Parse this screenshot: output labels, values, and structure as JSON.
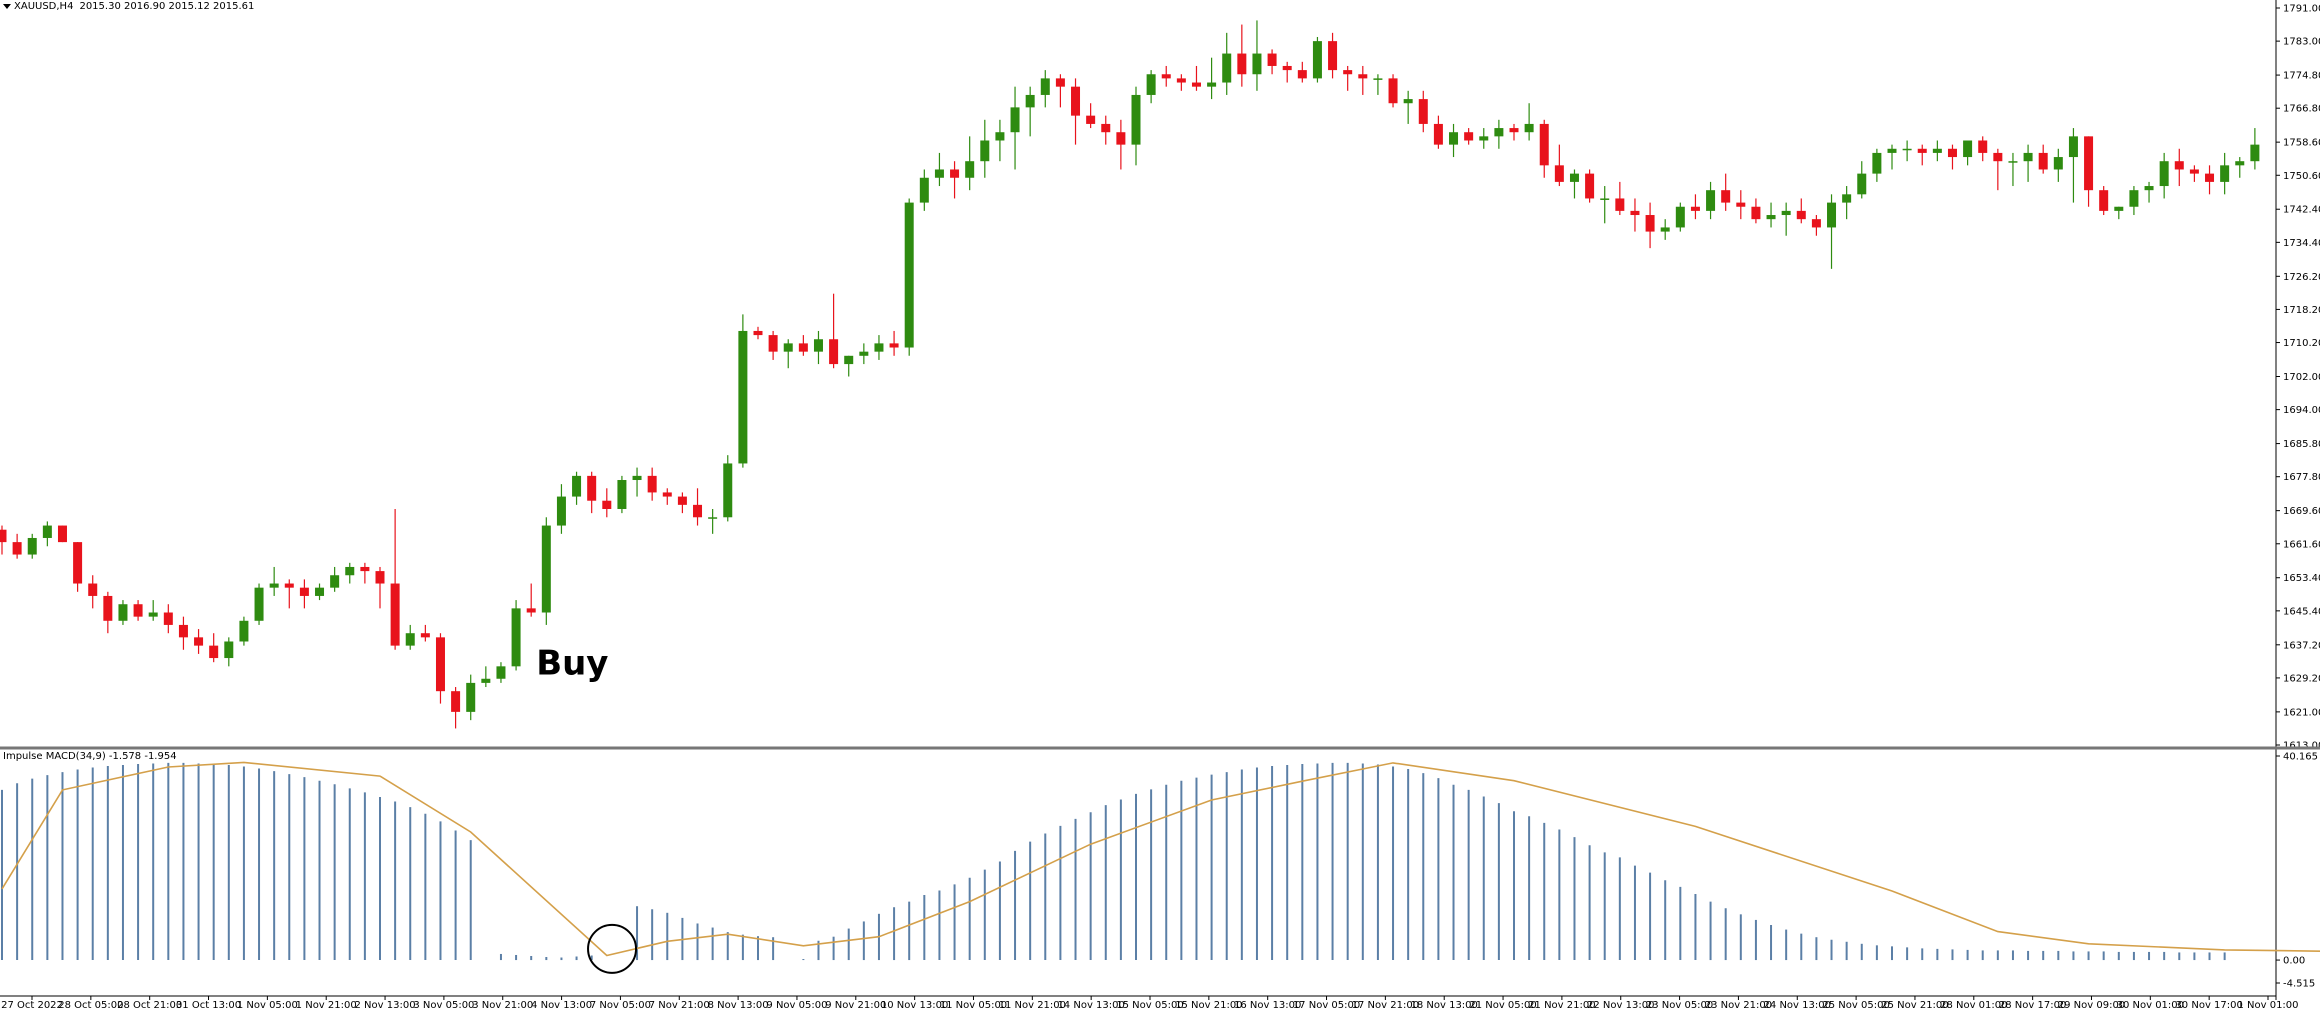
{
  "header": {
    "symbol": "XAUUSD,H4",
    "ohlc": "2015.30 2016.90 2015.12 2015.61"
  },
  "indicator": {
    "label": "Impulse MACD(34,9) -1.578 -1.954"
  },
  "annotation": {
    "buy_label": "Buy"
  },
  "colors": {
    "bull": "#2e8b10",
    "bear": "#e8131c",
    "hist": "#5b7fa6",
    "signal": "#d4a04a",
    "separator": "#777777"
  },
  "chart_data": [
    {
      "type": "candlestick",
      "title": "XAUUSD,H4",
      "ylim": [
        1613.0,
        1791.0
      ],
      "y_ticks": [
        "1791.00",
        "1783.00",
        "1774.80",
        "1766.80",
        "1758.60",
        "1750.60",
        "1742.40",
        "1734.40",
        "1726.20",
        "1718.20",
        "1710.20",
        "1702.00",
        "1694.00",
        "1685.80",
        "1677.80",
        "1669.60",
        "1661.60",
        "1653.40",
        "1645.40",
        "1637.20",
        "1629.20",
        "1621.00",
        "1613.00"
      ],
      "candles": [
        [
          1665,
          1666,
          1659,
          1662
        ],
        [
          1662,
          1664,
          1658,
          1659
        ],
        [
          1659,
          1664,
          1658,
          1663
        ],
        [
          1663,
          1667,
          1661,
          1666
        ],
        [
          1666,
          1666,
          1662,
          1662
        ],
        [
          1662,
          1662,
          1650,
          1652
        ],
        [
          1652,
          1654,
          1646,
          1649
        ],
        [
          1649,
          1650,
          1640,
          1643
        ],
        [
          1643,
          1648,
          1642,
          1647
        ],
        [
          1647,
          1648,
          1643,
          1644
        ],
        [
          1644,
          1648,
          1643,
          1645
        ],
        [
          1645,
          1647,
          1640,
          1642
        ],
        [
          1642,
          1644,
          1636,
          1639
        ],
        [
          1639,
          1641,
          1635,
          1637
        ],
        [
          1637,
          1640,
          1633,
          1634
        ],
        [
          1634,
          1639,
          1632,
          1638
        ],
        [
          1638,
          1644,
          1637,
          1643
        ],
        [
          1643,
          1652,
          1642,
          1651
        ],
        [
          1651,
          1656,
          1649,
          1652
        ],
        [
          1652,
          1653,
          1646,
          1651
        ],
        [
          1651,
          1653,
          1646,
          1649
        ],
        [
          1649,
          1652,
          1648,
          1651
        ],
        [
          1651,
          1656,
          1650,
          1654
        ],
        [
          1654,
          1657,
          1652,
          1656
        ],
        [
          1656,
          1657,
          1652,
          1655
        ],
        [
          1655,
          1656,
          1646,
          1652
        ],
        [
          1652,
          1670,
          1636,
          1637
        ],
        [
          1637,
          1642,
          1636,
          1640
        ],
        [
          1640,
          1642,
          1638,
          1639
        ],
        [
          1639,
          1640,
          1623,
          1626
        ],
        [
          1626,
          1627,
          1617,
          1621
        ],
        [
          1621,
          1630,
          1619,
          1628
        ],
        [
          1628,
          1632,
          1627,
          1629
        ],
        [
          1629,
          1633,
          1628,
          1632
        ],
        [
          1632,
          1648,
          1631,
          1646
        ],
        [
          1646,
          1652,
          1644,
          1645
        ],
        [
          1645,
          1668,
          1642,
          1666
        ],
        [
          1666,
          1676,
          1664,
          1673
        ],
        [
          1673,
          1679,
          1671,
          1678
        ],
        [
          1678,
          1679,
          1669,
          1672
        ],
        [
          1672,
          1675,
          1668,
          1670
        ],
        [
          1670,
          1678,
          1669,
          1677
        ],
        [
          1677,
          1680,
          1673,
          1678
        ],
        [
          1678,
          1680,
          1672,
          1674
        ],
        [
          1674,
          1675,
          1671,
          1673
        ],
        [
          1673,
          1674,
          1669,
          1671
        ],
        [
          1671,
          1675,
          1666,
          1668
        ],
        [
          1668,
          1670,
          1664,
          1668
        ],
        [
          1668,
          1683,
          1667,
          1681
        ],
        [
          1681,
          1717,
          1680,
          1713
        ],
        [
          1713,
          1714,
          1711,
          1712
        ],
        [
          1712,
          1713,
          1706,
          1708
        ],
        [
          1708,
          1711,
          1704,
          1710
        ],
        [
          1710,
          1712,
          1707,
          1708
        ],
        [
          1708,
          1713,
          1705,
          1711
        ],
        [
          1711,
          1722,
          1704,
          1705
        ],
        [
          1705,
          1707,
          1702,
          1707
        ],
        [
          1707,
          1710,
          1705,
          1708
        ],
        [
          1708,
          1712,
          1706,
          1710
        ],
        [
          1710,
          1713,
          1707,
          1709
        ],
        [
          1709,
          1745,
          1707,
          1744
        ],
        [
          1744,
          1752,
          1742,
          1750
        ],
        [
          1750,
          1756,
          1748,
          1752
        ],
        [
          1752,
          1754,
          1745,
          1750
        ],
        [
          1750,
          1760,
          1747,
          1754
        ],
        [
          1754,
          1764,
          1750,
          1759
        ],
        [
          1759,
          1764,
          1754,
          1761
        ],
        [
          1761,
          1772,
          1752,
          1767
        ],
        [
          1767,
          1772,
          1760,
          1770
        ],
        [
          1770,
          1776,
          1767,
          1774
        ],
        [
          1774,
          1775,
          1767,
          1772
        ],
        [
          1772,
          1774,
          1758,
          1765
        ],
        [
          1765,
          1768,
          1762,
          1763
        ],
        [
          1763,
          1765,
          1758,
          1761
        ],
        [
          1761,
          1764,
          1752,
          1758
        ],
        [
          1758,
          1772,
          1753,
          1770
        ],
        [
          1770,
          1776,
          1768,
          1775
        ],
        [
          1775,
          1777,
          1772,
          1774
        ],
        [
          1774,
          1775,
          1771,
          1773
        ],
        [
          1773,
          1777,
          1771,
          1772
        ],
        [
          1772,
          1779,
          1769,
          1773
        ],
        [
          1773,
          1785,
          1770,
          1780
        ],
        [
          1780,
          1787,
          1772,
          1775
        ],
        [
          1775,
          1788,
          1771,
          1780
        ],
        [
          1780,
          1781,
          1775,
          1777
        ],
        [
          1777,
          1778,
          1773,
          1776
        ],
        [
          1776,
          1778,
          1773,
          1774
        ],
        [
          1774,
          1784,
          1773,
          1783
        ],
        [
          1783,
          1785,
          1774,
          1776
        ],
        [
          1776,
          1777,
          1771,
          1775
        ],
        [
          1775,
          1777,
          1770,
          1774
        ],
        [
          1774,
          1775,
          1770,
          1774
        ],
        [
          1774,
          1775,
          1767,
          1768
        ],
        [
          1768,
          1771,
          1763,
          1769
        ],
        [
          1769,
          1771,
          1761,
          1763
        ],
        [
          1763,
          1765,
          1757,
          1758
        ],
        [
          1758,
          1763,
          1755,
          1761
        ],
        [
          1761,
          1762,
          1758,
          1759
        ],
        [
          1759,
          1762,
          1757,
          1760
        ],
        [
          1760,
          1764,
          1757,
          1762
        ],
        [
          1762,
          1763,
          1759,
          1761
        ],
        [
          1761,
          1768,
          1759,
          1763
        ],
        [
          1763,
          1764,
          1750,
          1753
        ],
        [
          1753,
          1758,
          1748,
          1749
        ],
        [
          1749,
          1752,
          1745,
          1751
        ],
        [
          1751,
          1752,
          1744,
          1745
        ],
        [
          1745,
          1748,
          1739,
          1745
        ],
        [
          1745,
          1749,
          1741,
          1742
        ],
        [
          1742,
          1745,
          1737,
          1741
        ],
        [
          1741,
          1744,
          1733,
          1737
        ],
        [
          1737,
          1740,
          1735,
          1738
        ],
        [
          1738,
          1744,
          1737,
          1743
        ],
        [
          1743,
          1746,
          1740,
          1742
        ],
        [
          1742,
          1749,
          1740,
          1747
        ],
        [
          1747,
          1751,
          1742,
          1744
        ],
        [
          1744,
          1747,
          1740,
          1743
        ],
        [
          1743,
          1745,
          1739,
          1740
        ],
        [
          1740,
          1744,
          1738,
          1741
        ],
        [
          1741,
          1744,
          1736,
          1742
        ],
        [
          1742,
          1745,
          1739,
          1740
        ],
        [
          1740,
          1741,
          1736,
          1738
        ],
        [
          1738,
          1746,
          1728,
          1744
        ],
        [
          1744,
          1748,
          1740,
          1746
        ],
        [
          1746,
          1754,
          1745,
          1751
        ],
        [
          1751,
          1757,
          1749,
          1756
        ],
        [
          1756,
          1758,
          1752,
          1757
        ],
        [
          1757,
          1759,
          1754,
          1757
        ],
        [
          1757,
          1758,
          1753,
          1756
        ],
        [
          1756,
          1759,
          1754,
          1757
        ],
        [
          1757,
          1758,
          1752,
          1755
        ],
        [
          1755,
          1759,
          1753,
          1759
        ],
        [
          1759,
          1760,
          1754,
          1756
        ],
        [
          1756,
          1757,
          1747,
          1754
        ],
        [
          1754,
          1756,
          1748,
          1754
        ],
        [
          1754,
          1758,
          1749,
          1756
        ],
        [
          1756,
          1758,
          1751,
          1752
        ],
        [
          1752,
          1757,
          1749,
          1755
        ],
        [
          1755,
          1762,
          1744,
          1760
        ],
        [
          1760,
          1760,
          1743,
          1747
        ],
        [
          1747,
          1748,
          1741,
          1742
        ],
        [
          1742,
          1743,
          1740,
          1743
        ],
        [
          1743,
          1748,
          1741,
          1747
        ],
        [
          1747,
          1749,
          1744,
          1748
        ],
        [
          1748,
          1756,
          1745,
          1754
        ],
        [
          1754,
          1757,
          1748,
          1752
        ],
        [
          1752,
          1753,
          1749,
          1751
        ],
        [
          1751,
          1753,
          1746,
          1749
        ],
        [
          1749,
          1756,
          1746,
          1753
        ],
        [
          1753,
          1755,
          1750,
          1754
        ],
        [
          1754,
          1762,
          1752,
          1758
        ]
      ],
      "annotations": [
        {
          "text": "Buy",
          "candle_index": 35
        }
      ]
    },
    {
      "type": "bar",
      "title": "Impulse MACD(34,9) -1.578 -1.954",
      "ylim": [
        -4.515,
        40.165
      ],
      "y_ticks": [
        "40.165",
        "0.00",
        "-4.515"
      ],
      "x_labels": [
        "27 Oct 2022",
        "28 Oct 05:00",
        "28 Oct 21:00",
        "31 Oct 13:00",
        "1 Nov 05:00",
        "1 Nov 21:00",
        "2 Nov 13:00",
        "3 Nov 05:00",
        "3 Nov 21:00",
        "4 Nov 13:00",
        "7 Nov 05:00",
        "7 Nov 21:00",
        "8 Nov 13:00",
        "9 Nov 05:00",
        "9 Nov 21:00",
        "10 Nov 13:00",
        "11 Nov 05:00",
        "11 Nov 21:00",
        "14 Nov 13:00",
        "15 Nov 05:00",
        "15 Nov 21:00",
        "16 Nov 13:00",
        "17 Nov 05:00",
        "17 Nov 21:00",
        "18 Nov 13:00",
        "21 Nov 05:00",
        "21 Nov 21:00",
        "22 Nov 13:00",
        "23 Nov 05:00",
        "23 Nov 21:00",
        "24 Nov 13:00",
        "25 Nov 05:00",
        "25 Nov 21:00",
        "28 Nov 01:00",
        "28 Nov 17:00",
        "29 Nov 09:00",
        "30 Nov 01:00",
        "30 Nov 17:00",
        "1 Nov 01:00"
      ],
      "histogram": [
        33.5,
        34.8,
        35.7,
        36.4,
        37.0,
        37.5,
        37.9,
        38.2,
        38.4,
        38.6,
        38.7,
        38.8,
        38.8,
        38.7,
        38.6,
        38.4,
        38.1,
        37.7,
        37.2,
        36.6,
        36.0,
        35.3,
        34.6,
        33.8,
        33.0,
        32.1,
        31.2,
        30.1,
        28.8,
        27.3,
        25.5,
        23.6,
        0,
        1.2,
        1.0,
        0.8,
        0.6,
        0.5,
        0.7,
        0.9,
        0,
        0,
        10.6,
        10.0,
        9.3,
        8.3,
        7.2,
        6.4,
        5.5,
        5.0,
        4.7,
        4.5,
        0,
        0.2,
        3.8,
        4.6,
        6.2,
        7.6,
        9.1,
        10.4,
        11.5,
        12.8,
        13.7,
        14.9,
        16.2,
        17.8,
        19.4,
        21.5,
        23.3,
        24.9,
        26.4,
        27.8,
        29.1,
        30.5,
        31.6,
        32.7,
        33.6,
        34.5,
        35.3,
        35.9,
        36.5,
        37.0,
        37.5,
        37.9,
        38.2,
        38.4,
        38.6,
        38.7,
        38.8,
        38.8,
        38.7,
        38.5,
        38.1,
        37.6,
        36.8,
        35.8,
        34.5,
        33.5,
        32.2,
        30.9,
        29.3,
        28.3,
        27.0,
        25.7,
        24.2,
        22.6,
        21.2,
        20.2,
        18.6,
        17.2,
        15.7,
        14.4,
        13.0,
        11.5,
        10.2,
        9.0,
        7.9,
        6.9,
        6.0,
        5.2,
        4.5,
        4.0,
        3.6,
        3.2,
        2.9,
        2.7,
        2.5,
        2.3,
        2.2,
        2.1,
        2.0,
        1.9,
        1.9,
        1.9,
        1.8,
        1.8,
        1.8,
        1.7,
        1.7,
        1.7,
        1.6,
        1.6,
        1.6,
        1.6,
        1.5,
        1.5,
        1.5,
        1.5
      ],
      "signal": [
        [
          0,
          14.0
        ],
        [
          4,
          33.5
        ],
        [
          11,
          38.0
        ],
        [
          16,
          38.9
        ],
        [
          25,
          36.2
        ],
        [
          31,
          25.2
        ],
        [
          40,
          0.9
        ],
        [
          44,
          3.7
        ],
        [
          48,
          5.1
        ],
        [
          53,
          2.8
        ],
        [
          58,
          4.6
        ],
        [
          64,
          11.5
        ],
        [
          72,
          22.8
        ],
        [
          80,
          31.5
        ],
        [
          86,
          35.2
        ],
        [
          92,
          38.8
        ],
        [
          100,
          35.3
        ],
        [
          112,
          26.3
        ],
        [
          125,
          13.6
        ],
        [
          132,
          5.6
        ],
        [
          138,
          3.2
        ],
        [
          147,
          2.0
        ],
        [
          157,
          1.6
        ],
        [
          165,
          1.5
        ]
      ],
      "annotations": [
        {
          "type": "circle",
          "index": 42
        }
      ]
    }
  ]
}
